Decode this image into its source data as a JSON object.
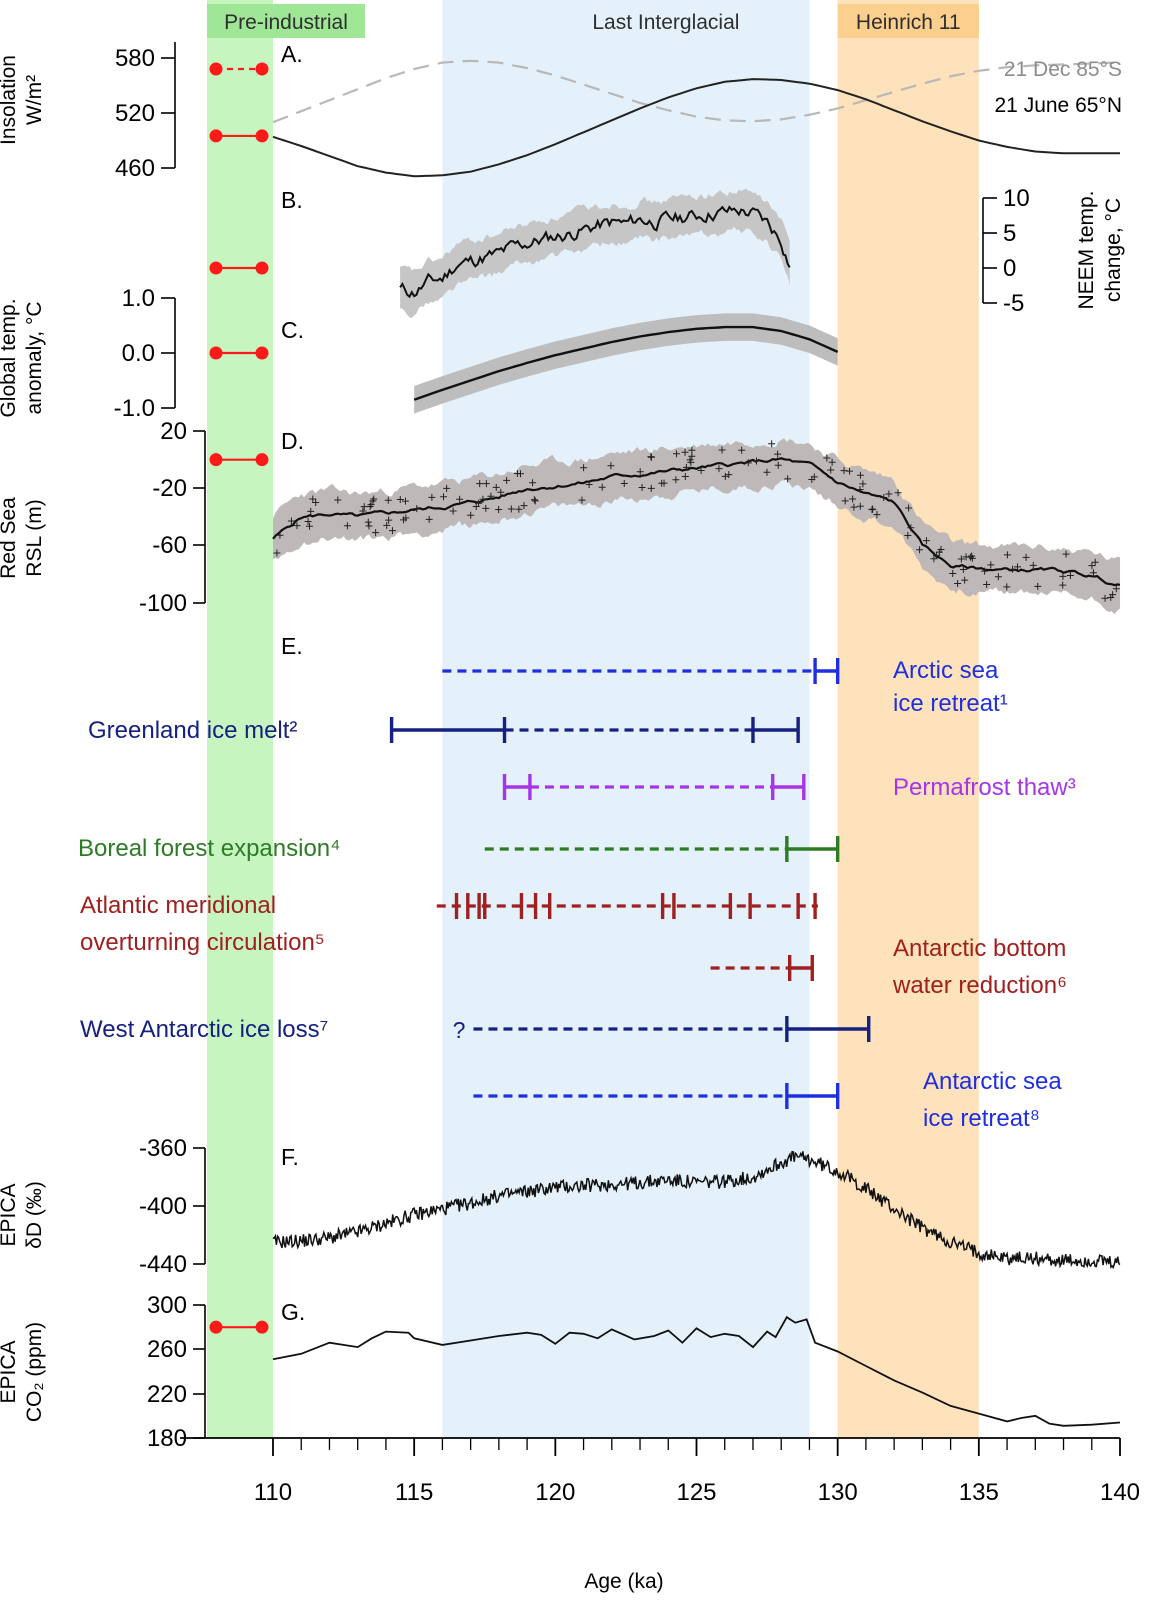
{
  "chart_data": {
    "type": "line",
    "x_axis": {
      "label": "Age (ka)",
      "range": [
        110,
        140
      ],
      "ticks": [
        "110",
        "115",
        "120",
        "125",
        "130",
        "135",
        "140"
      ],
      "minor_tick_step": 1
    },
    "bands": [
      {
        "label": "Pre-industrial",
        "color": "#c6f5c0"
      },
      {
        "label": "Last Interglacial",
        "x_start": 116,
        "x_end": 129,
        "color": "#e4f1fb"
      },
      {
        "label": "Heinrich 11",
        "x_start": 130,
        "x_end": 135,
        "color": "#fde2bb"
      }
    ],
    "panels": [
      {
        "letter": "A.",
        "ylabel": [
          "Insolation",
          "W/m²"
        ],
        "yticks": [
          "580",
          "520",
          "460"
        ],
        "series": [
          {
            "name": "21 June 65°N",
            "color": "#222222",
            "style": "solid",
            "x": [
              110,
              111,
              112,
              113,
              114,
              115,
              116,
              117,
              118,
              119,
              120,
              121,
              122,
              123,
              124,
              125,
              126,
              127,
              128,
              129,
              130,
              131,
              132,
              133,
              134,
              135,
              136,
              137,
              138,
              139,
              140
            ],
            "y": [
              494,
              484,
              473,
              462,
              455,
              451,
              452,
              456,
              464,
              474,
              486,
              499,
              512,
              525,
              537,
              547,
              554,
              557,
              556,
              552,
              545,
              535,
              523,
              511,
              500,
              490,
              483,
              478,
              476,
              476,
              476
            ]
          },
          {
            "name": "21 Dec 85°S",
            "color": "#b8b8b8",
            "style": "dashed",
            "x": [
              110,
              111,
              112,
              113,
              114,
              115,
              116,
              117,
              118,
              119,
              120,
              121,
              122,
              123,
              124,
              125,
              126,
              127,
              128,
              129,
              130,
              131,
              132,
              133,
              134,
              135,
              136,
              137,
              138,
              139,
              140
            ],
            "y": [
              510,
              522,
              534,
              546,
              558,
              568,
              575,
              577,
              575,
              569,
              561,
              551,
              541,
              531,
              523,
              516,
              512,
              511,
              513,
              518,
              525,
              534,
              543,
              552,
              560,
              566,
              570,
              572,
              573,
              574,
              575
            ]
          }
        ],
        "preindustrial": [
          {
            "y": 568,
            "style": "dashed"
          },
          {
            "y": 495,
            "style": "solid"
          }
        ]
      },
      {
        "letter": "B.",
        "ylabel": [
          "NEEM temp.",
          "change, °C"
        ],
        "yticks": [
          "10",
          "5",
          "0",
          "-5"
        ],
        "series": [
          {
            "name": "NEEM",
            "x": [
              114.5,
              115,
              115.5,
              116,
              116.5,
              117,
              117.5,
              118,
              118.5,
              119,
              119.5,
              120,
              120.5,
              121,
              121.5,
              122,
              122.5,
              123,
              123.5,
              124,
              124.5,
              125,
              125.5,
              126,
              126.5,
              127,
              127.5,
              128,
              128.3
            ],
            "y": [
              -3,
              -3.5,
              -2,
              -1.5,
              0.5,
              1,
              1.5,
              2,
              3,
              3.5,
              4,
              4.5,
              4.8,
              5.5,
              6,
              6.5,
              6.3,
              7,
              6.5,
              7,
              7.2,
              7.5,
              7.8,
              8,
              8.2,
              7.8,
              6.5,
              4,
              0.5
            ],
            "band": 2.8
          }
        ],
        "preindustrial": [
          {
            "y": 0,
            "style": "solid"
          }
        ]
      },
      {
        "letter": "C.",
        "ylabel": [
          "Global temp.",
          "anomaly, °C"
        ],
        "yticks": [
          "1.0",
          "0.0",
          "-1.0"
        ],
        "series": [
          {
            "name": "Global",
            "x": [
              115,
              116,
              117,
              118,
              119,
              120,
              121,
              122,
              123,
              124,
              125,
              126,
              127,
              128,
              129,
              130
            ],
            "y": [
              -0.85,
              -0.67,
              -0.5,
              -0.33,
              -0.18,
              -0.04,
              0.08,
              0.2,
              0.3,
              0.38,
              0.44,
              0.47,
              0.47,
              0.4,
              0.25,
              0.02
            ],
            "band": 0.25
          }
        ],
        "preindustrial": [
          {
            "y": 0,
            "style": "solid"
          }
        ]
      },
      {
        "letter": "D.",
        "ylabel": [
          "Red Sea",
          "RSL (m)"
        ],
        "yticks": [
          "20",
          "-20",
          "-60",
          "-100"
        ],
        "series": [
          {
            "name": "Red Sea RSL",
            "x": [
              110,
              111,
              112,
              113,
              114,
              115,
              116,
              117,
              118,
              119,
              120,
              121,
              122,
              123,
              124,
              125,
              126,
              127,
              128,
              129,
              130,
              131,
              132,
              133,
              134,
              135,
              136,
              137,
              138,
              139,
              140
            ],
            "y": [
              -55,
              -40,
              -38,
              -40,
              -38,
              -35,
              -33,
              -30,
              -26,
              -20,
              -18,
              -16,
              -12,
              -10,
              -8,
              -6,
              -4,
              -2,
              0,
              -4,
              -16,
              -24,
              -30,
              -60,
              -74,
              -76,
              -77,
              -77,
              -78,
              -81,
              -88
            ],
            "band": 16
          }
        ],
        "preindustrial": [
          {
            "y": 0,
            "style": "solid"
          }
        ]
      },
      {
        "letter": "E.",
        "events": [
          {
            "label": [
              "Arctic sea",
              "ice retreat¹"
            ],
            "color": "#1f2fe0",
            "dashed": [
              116,
              129.2
            ],
            "solid": [
              [
                129.2,
                130
              ]
            ]
          },
          {
            "label": [
              "Greenland ice melt²"
            ],
            "color": "#152080",
            "dashed": [
              118.2,
              127
            ],
            "solid": [
              [
                114.2,
                118.2
              ],
              [
                127,
                128.6
              ]
            ]
          },
          {
            "label": [
              "Permafrost thaw³"
            ],
            "color": "#a635e8",
            "dashed": [
              119.1,
              127.7
            ],
            "solid": [
              [
                118.2,
                119.1
              ],
              [
                127.7,
                128.8
              ]
            ]
          },
          {
            "label": [
              "Boreal forest expansion⁴"
            ],
            "color": "#2e7b25",
            "dashed": [
              117.5,
              128.2
            ],
            "solid": [
              [
                128.2,
                130
              ]
            ]
          },
          {
            "label": [
              "Atlantic meridional",
              "overturning circulation⁵"
            ],
            "color": "#a01f1f",
            "dashed": [
              115.8,
              129.3
            ],
            "ticks": [
              116.5,
              116.9,
              117.3,
              117.5,
              118.8,
              119.3,
              119.8,
              123.8,
              124.2,
              126.2,
              126.9,
              128.6,
              129.2
            ]
          },
          {
            "label": [
              "Antarctic bottom",
              "water reduction⁶"
            ],
            "color": "#a01f1f",
            "dashed": [
              125.5,
              128.3
            ],
            "solid": [
              [
                128.3,
                129.1
              ]
            ]
          },
          {
            "label": [
              "West Antarctic ice loss⁷"
            ],
            "color": "#152080",
            "dashed": [
              117.1,
              128.2
            ],
            "solid": [
              [
                128.2,
                131.1
              ]
            ],
            "question": "?"
          },
          {
            "label": [
              "Antarctic sea",
              "ice retreat⁸"
            ],
            "color": "#1f2fe0",
            "dashed": [
              117.1,
              128.2
            ],
            "solid": [
              [
                128.2,
                130
              ]
            ]
          }
        ]
      },
      {
        "letter": "F.",
        "ylabel": [
          "EPICA",
          "δD (‰)"
        ],
        "yticks": [
          "-360",
          "-400",
          "-440"
        ],
        "series": [
          {
            "name": "EPICA δD",
            "x": [
              110,
              111,
              112,
              113,
              114,
              115,
              116,
              117,
              118,
              119,
              120,
              121,
              122,
              123,
              124,
              125,
              126,
              127,
              128,
              128.5,
              129,
              130,
              131,
              132,
              133,
              134,
              135,
              136,
              137,
              138,
              139,
              140
            ],
            "y": [
              -425,
              -424,
              -422,
              -418,
              -412,
              -406,
              -402,
              -398,
              -393,
              -390,
              -387,
              -386,
              -385,
              -384,
              -382,
              -384,
              -383,
              -380,
              -370,
              -366,
              -368,
              -376,
              -388,
              -402,
              -415,
              -425,
              -432,
              -436,
              -436,
              -438,
              -438,
              -440
            ],
            "noise": 3
          }
        ]
      },
      {
        "letter": "G.",
        "ylabel": [
          "EPICA",
          "CO₂ (ppm)"
        ],
        "yticks": [
          "300",
          "260",
          "220",
          "180"
        ],
        "series": [
          {
            "name": "EPICA CO2",
            "x": [
              110,
              111,
              112,
              113,
              113.5,
              114,
              114.8,
              115,
              116,
              117,
              118,
              119,
              119.5,
              120,
              120.5,
              121,
              121.5,
              122,
              122.8,
              123.5,
              124,
              124.5,
              125,
              125.5,
              126,
              126.5,
              127,
              127.5,
              127.8,
              128.2,
              128.5,
              128.9,
              129.2,
              130,
              131,
              132,
              133,
              134,
              135,
              136,
              136.5,
              137,
              137.5,
              138,
              139,
              140
            ],
            "y": [
              251,
              256,
              266,
              262,
              270,
              276,
              275,
              270,
              264,
              268,
              272,
              275,
              273,
              265,
              275,
              274,
              270,
              278,
              269,
              272,
              277,
              266,
              279,
              271,
              274,
              272,
              262,
              276,
              271,
              289,
              284,
              287,
              266,
              258,
              245,
              232,
              221,
              209,
              202,
              195,
              198,
              200,
              193,
              191,
              192,
              194
            ]
          }
        ],
        "preindustrial": [
          {
            "y": 280,
            "style": "solid"
          }
        ]
      }
    ]
  }
}
